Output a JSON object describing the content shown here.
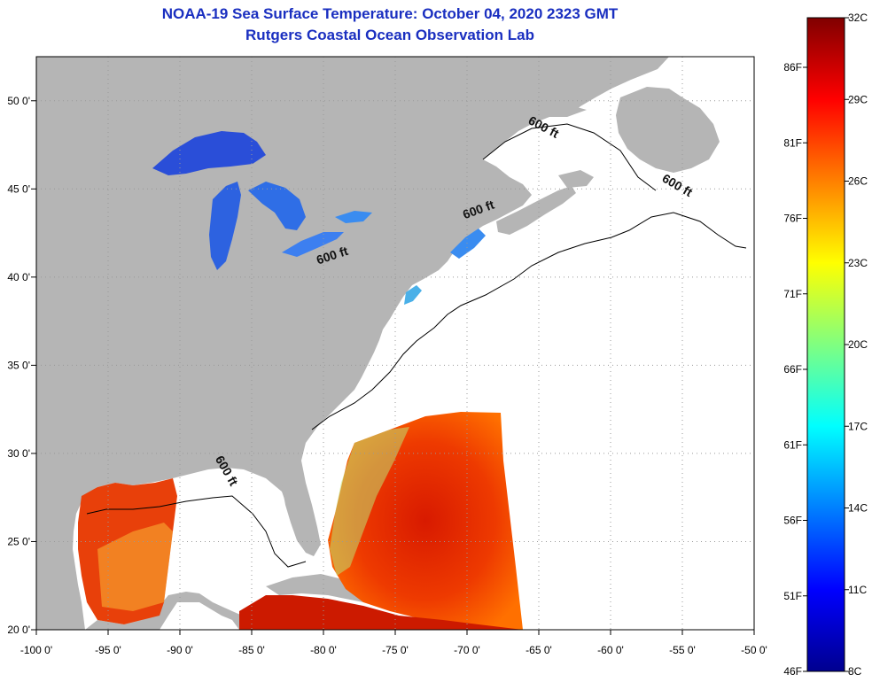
{
  "header": {
    "title": "NOAA-19 Sea Surface Temperature:  October 04, 2020 2323 GMT",
    "subtitle": "Rutgers Coastal Ocean Observation Lab"
  },
  "map": {
    "lon_range": [
      -100,
      -50
    ],
    "lat_range": [
      20,
      52.5
    ],
    "lon_ticks": [
      {
        "value": -100,
        "label": "-100 0'"
      },
      {
        "value": -95,
        "label": "-95 0'"
      },
      {
        "value": -90,
        "label": "-90 0'"
      },
      {
        "value": -85,
        "label": "-85 0'"
      },
      {
        "value": -80,
        "label": "-80 0'"
      },
      {
        "value": -75,
        "label": "-75 0'"
      },
      {
        "value": -70,
        "label": "-70 0'"
      },
      {
        "value": -65,
        "label": "-65 0'"
      },
      {
        "value": -60,
        "label": "-60 0'"
      },
      {
        "value": -55,
        "label": "-55 0'"
      },
      {
        "value": -50,
        "label": "-50 0'"
      }
    ],
    "lat_ticks": [
      {
        "value": 20,
        "label": "20 0'"
      },
      {
        "value": 25,
        "label": "25 0'"
      },
      {
        "value": 30,
        "label": "30 0'"
      },
      {
        "value": 35,
        "label": "35 0'"
      },
      {
        "value": 40,
        "label": "40 0'"
      },
      {
        "value": 45,
        "label": "45 0'"
      },
      {
        "value": 50,
        "label": "50 0'"
      }
    ],
    "contour_labels": [
      {
        "text": "600 ft",
        "lon": -79.3,
        "lat": 41.0,
        "angle": -18
      },
      {
        "text": "600 ft",
        "lon": -69.1,
        "lat": 43.6,
        "angle": -20
      },
      {
        "text": "600 ft",
        "lon": -64.8,
        "lat": 48.3,
        "angle": 28
      },
      {
        "text": "600 ft",
        "lon": -55.5,
        "lat": 45.0,
        "angle": 30
      },
      {
        "text": "600 ft",
        "lon": -87.0,
        "lat": 28.9,
        "angle": 60
      }
    ],
    "colors": {
      "land": "#b5b5b5",
      "ocean_nodata": "#ffffff",
      "grid": "#999999",
      "coast": "#000000"
    }
  },
  "colorbar": {
    "min_c": 8,
    "max_c": 32,
    "c_labels": [
      "32C",
      "29C",
      "26C",
      "23C",
      "20C",
      "17C",
      "14C",
      "11C",
      "8C"
    ],
    "f_labels": [
      "86F",
      "81F",
      "76F",
      "71F",
      "66F",
      "61F",
      "56F",
      "51F",
      "46F"
    ],
    "colormap": [
      "#00008f",
      "#0000ff",
      "#0080ff",
      "#00ffff",
      "#80ff80",
      "#ffff00",
      "#ff8000",
      "#ff0000",
      "#800000"
    ]
  }
}
